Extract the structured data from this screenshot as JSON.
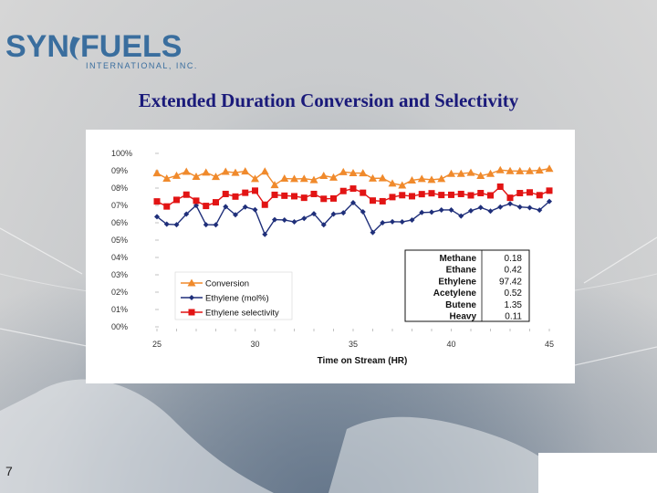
{
  "logo": {
    "brand_left": "SYN",
    "brand_right": "FUELS",
    "tagline": "INTERNATIONAL, INC."
  },
  "slide": {
    "title": "Extended Duration Conversion and Selectivity",
    "page_number": "7"
  },
  "colors": {
    "title": "#1a1a7a",
    "conversion": "#f08a2c",
    "ethylene_mol": "#1f2f7a",
    "ethylene_sel": "#e21414",
    "logo_blue": "#3a6e9e"
  },
  "chart_data": {
    "type": "line",
    "xlabel": "Time on Stream (HR)",
    "ylabel": "",
    "xlim": [
      25,
      45
    ],
    "ylim": [
      0,
      100
    ],
    "x_ticks": [
      "25",
      "30",
      "35",
      "40",
      "45"
    ],
    "y_ticks": [
      "00%",
      "01%",
      "02%",
      "03%",
      "04%",
      "05%",
      "06%",
      "07%",
      "08%",
      "09%",
      "100%"
    ],
    "legend_position": "bottom-left",
    "series": [
      {
        "name": "Conversion",
        "marker": "triangle",
        "color": "#f08a2c",
        "x": [
          25,
          25.5,
          26,
          26.5,
          27,
          27.5,
          28,
          28.5,
          29,
          29.5,
          30,
          30.5,
          31,
          31.5,
          32,
          32.5,
          33,
          33.5,
          34,
          34.5,
          35,
          35.5,
          36,
          36.5,
          37,
          37.5,
          38,
          38.5,
          39,
          39.5,
          40,
          40.5,
          41,
          41.5,
          42,
          42.5,
          43,
          43.5,
          44,
          44.5,
          45
        ],
        "y": [
          88.6,
          85.5,
          87.2,
          89.5,
          86.6,
          89.0,
          86.5,
          89.5,
          88.9,
          89.7,
          85.3,
          89.6,
          81.8,
          85.5,
          85.3,
          85.4,
          84.7,
          87.1,
          86.1,
          89.3,
          88.7,
          88.6,
          85.6,
          85.7,
          82.7,
          81.6,
          84.5,
          85.3,
          84.8,
          85.3,
          88.3,
          88.3,
          88.9,
          87.1,
          88.3,
          90.4,
          89.9,
          89.8,
          89.9,
          90.2,
          91.2
        ]
      },
      {
        "name": "Ethylene (mol%)",
        "marker": "diamond",
        "color": "#1f2f7a",
        "x": [
          25,
          25.5,
          26,
          26.5,
          27,
          27.5,
          28,
          28.5,
          29,
          29.5,
          30,
          30.5,
          31,
          31.5,
          32,
          32.5,
          33,
          33.5,
          34,
          34.5,
          35,
          35.5,
          36,
          36.5,
          37,
          37.5,
          38,
          38.5,
          39,
          39.5,
          40,
          40.5,
          41,
          41.5,
          42,
          42.5,
          43,
          43.5,
          44,
          44.5,
          45
        ],
        "y": [
          63.5,
          59.2,
          58.9,
          65.0,
          70.0,
          58.9,
          58.8,
          69.3,
          64.6,
          69.1,
          67.5,
          53.3,
          61.8,
          61.6,
          60.5,
          62.5,
          65.2,
          58.8,
          65.0,
          65.7,
          71.6,
          66.3,
          54.4,
          60.0,
          60.6,
          60.5,
          61.6,
          65.9,
          66.1,
          67.4,
          67.4,
          63.9,
          66.9,
          68.8,
          66.7,
          69.1,
          71.0,
          69.1,
          68.7,
          67.3,
          72.3
        ]
      },
      {
        "name": "Ethylene selectivity",
        "marker": "square",
        "color": "#e21414",
        "x": [
          25,
          25.5,
          26,
          26.5,
          27,
          27.5,
          28,
          28.5,
          29,
          29.5,
          30,
          30.5,
          31,
          31.5,
          32,
          32.5,
          33,
          33.5,
          34,
          34.5,
          35,
          35.5,
          36,
          36.5,
          37,
          37.5,
          38,
          38.5,
          39,
          39.5,
          40,
          40.5,
          41,
          41.5,
          42,
          42.5,
          43,
          43.5,
          44,
          44.5,
          45
        ],
        "y": [
          72.3,
          69.4,
          73.2,
          76.2,
          72.7,
          69.7,
          71.8,
          76.6,
          75.1,
          77.3,
          78.5,
          70.4,
          76.1,
          75.6,
          75.3,
          74.4,
          76.6,
          73.8,
          74.0,
          78.3,
          79.7,
          77.3,
          72.8,
          72.4,
          74.8,
          75.9,
          75.3,
          76.5,
          77.0,
          76.0,
          76.1,
          76.6,
          75.8,
          77.1,
          75.8,
          80.8,
          74.4,
          77.1,
          77.5,
          75.9,
          78.5
        ]
      }
    ],
    "table": {
      "rows": [
        {
          "name": "Methane",
          "value": "0.18"
        },
        {
          "name": "Ethane",
          "value": "0.42"
        },
        {
          "name": "Ethylene",
          "value": "97.42"
        },
        {
          "name": "Acetylene",
          "value": "0.52"
        },
        {
          "name": "Butene",
          "value": "1.35"
        },
        {
          "name": "Heavy",
          "value": "0.11"
        }
      ]
    }
  }
}
